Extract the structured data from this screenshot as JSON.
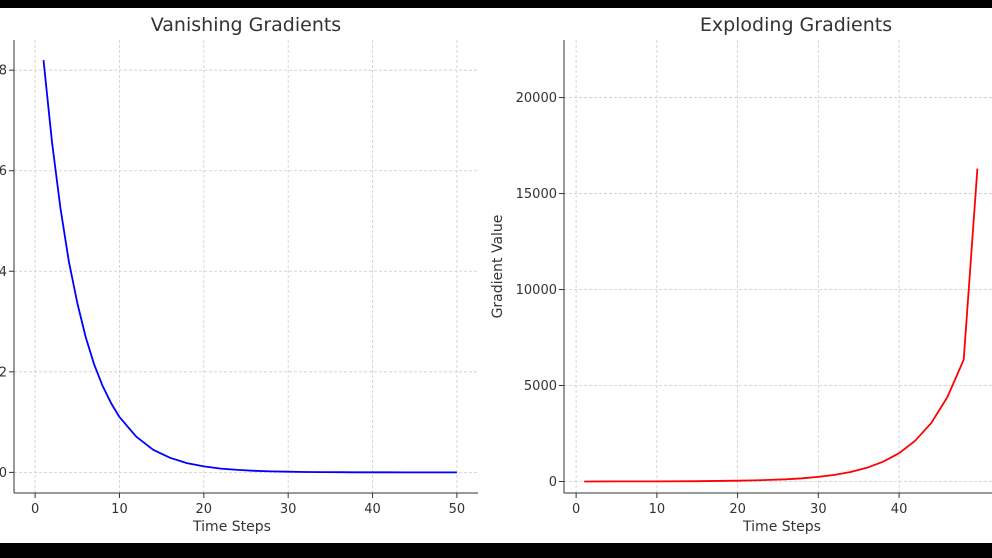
{
  "chart_data": [
    {
      "type": "line",
      "title": "Vanishing Gradients",
      "xlabel": "Time Steps",
      "ylabel": "",
      "xlim": [
        -2.5,
        52.5
      ],
      "ylim": [
        -0.41,
        8.6
      ],
      "xticks": [
        0,
        10,
        20,
        30,
        40,
        50
      ],
      "yticks": [
        0,
        2,
        4,
        6,
        8
      ],
      "ytick_labels": [
        "0",
        "2",
        "4",
        "6",
        "8"
      ],
      "grid": true,
      "series": [
        {
          "color": "#0000ff",
          "x": [
            1,
            2,
            3,
            4,
            5,
            6,
            7,
            8,
            9,
            10,
            12,
            14,
            16,
            18,
            20,
            22,
            24,
            26,
            28,
            30,
            32,
            34,
            36,
            38,
            40,
            42,
            44,
            46,
            48,
            50
          ],
          "y": [
            8.2,
            6.57,
            5.26,
            4.2,
            3.37,
            2.69,
            2.15,
            1.72,
            1.38,
            1.1,
            0.71,
            0.45,
            0.29,
            0.185,
            0.12,
            0.076,
            0.049,
            0.031,
            0.02,
            0.013,
            0.008,
            0.005,
            0.0033,
            0.0021,
            0.0014,
            0.0009,
            0.0006,
            0.0004,
            0.0002,
            0.0001
          ]
        }
      ]
    },
    {
      "type": "line",
      "title": "Exploding Gradients",
      "xlabel": "Time Steps",
      "ylabel": "Gradient Value",
      "xlim": [
        -1.5,
        52.5
      ],
      "ylim": [
        -600,
        23000
      ],
      "xticks": [
        0,
        10,
        20,
        30,
        40
      ],
      "yticks": [
        0,
        5000,
        10000,
        15000,
        20000
      ],
      "ytick_labels": [
        "0",
        "5000",
        "10000",
        "15000",
        "20000"
      ],
      "grid": true,
      "series": [
        {
          "color": "#ff0000",
          "x": [
            1,
            5,
            10,
            15,
            20,
            22,
            24,
            26,
            28,
            30,
            32,
            34,
            36,
            38,
            40,
            42,
            44,
            46,
            48,
            49.7
          ],
          "y": [
            1.2,
            2.5,
            6.2,
            15.4,
            38.3,
            55,
            80,
            115,
            166,
            238,
            343,
            494,
            711,
            1024,
            1475,
            2124,
            3059,
            4404,
            6342,
            16300
          ]
        }
      ]
    }
  ]
}
